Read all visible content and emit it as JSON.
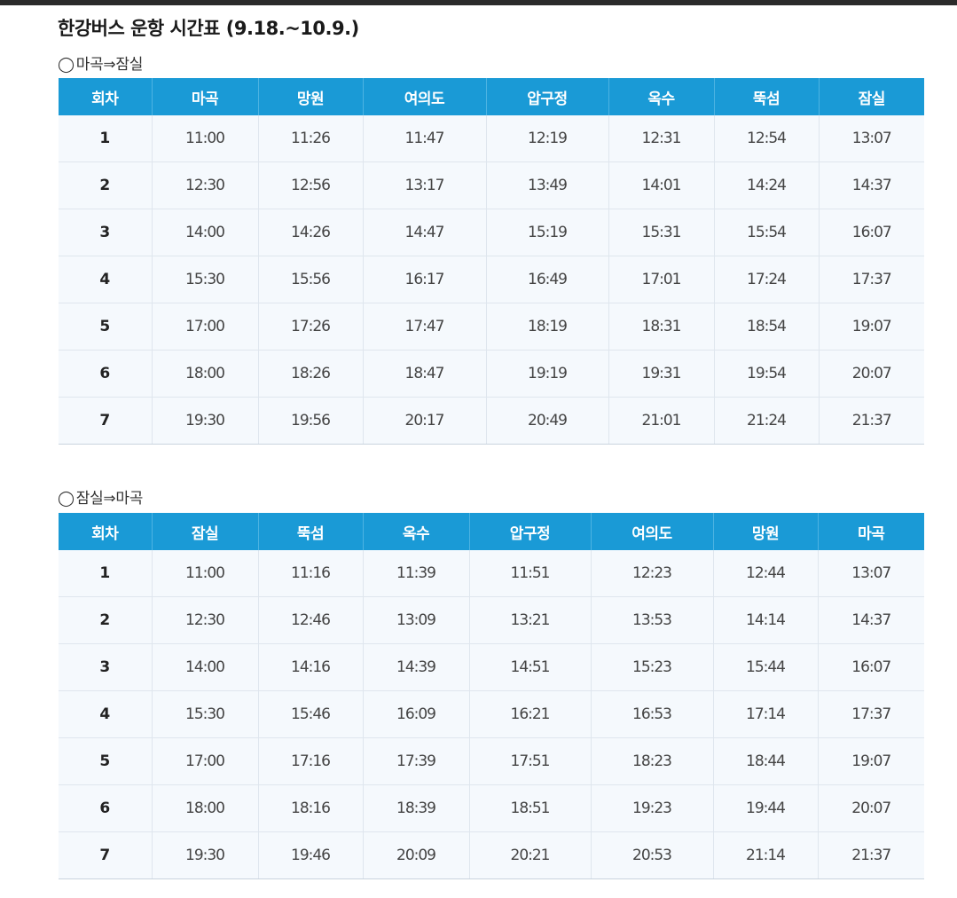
{
  "title": "한강버스 운항 시간표 (9.18.~10.9.)",
  "sections": [
    {
      "direction_mark": "◯",
      "direction": "마곡⇒잠실",
      "headers": [
        "회차",
        "마곡",
        "망원",
        "여의도",
        "압구정",
        "옥수",
        "뚝섬",
        "잠실"
      ],
      "rows": [
        [
          "1",
          "11:00",
          "11:26",
          "11:47",
          "12:19",
          "12:31",
          "12:54",
          "13:07"
        ],
        [
          "2",
          "12:30",
          "12:56",
          "13:17",
          "13:49",
          "14:01",
          "14:24",
          "14:37"
        ],
        [
          "3",
          "14:00",
          "14:26",
          "14:47",
          "15:19",
          "15:31",
          "15:54",
          "16:07"
        ],
        [
          "4",
          "15:30",
          "15:56",
          "16:17",
          "16:49",
          "17:01",
          "17:24",
          "17:37"
        ],
        [
          "5",
          "17:00",
          "17:26",
          "17:47",
          "18:19",
          "18:31",
          "18:54",
          "19:07"
        ],
        [
          "6",
          "18:00",
          "18:26",
          "18:47",
          "19:19",
          "19:31",
          "19:54",
          "20:07"
        ],
        [
          "7",
          "19:30",
          "19:56",
          "20:17",
          "20:49",
          "21:01",
          "21:24",
          "21:37"
        ]
      ]
    },
    {
      "direction_mark": "◯",
      "direction": "잠실⇒마곡",
      "headers": [
        "회차",
        "잠실",
        "뚝섬",
        "옥수",
        "압구정",
        "여의도",
        "망원",
        "마곡"
      ],
      "rows": [
        [
          "1",
          "11:00",
          "11:16",
          "11:39",
          "11:51",
          "12:23",
          "12:44",
          "13:07"
        ],
        [
          "2",
          "12:30",
          "12:46",
          "13:09",
          "13:21",
          "13:53",
          "14:14",
          "14:37"
        ],
        [
          "3",
          "14:00",
          "14:16",
          "14:39",
          "14:51",
          "15:23",
          "15:44",
          "16:07"
        ],
        [
          "4",
          "15:30",
          "15:46",
          "16:09",
          "16:21",
          "16:53",
          "17:14",
          "17:37"
        ],
        [
          "5",
          "17:00",
          "17:16",
          "17:39",
          "17:51",
          "18:23",
          "18:44",
          "19:07"
        ],
        [
          "6",
          "18:00",
          "18:16",
          "18:39",
          "18:51",
          "19:23",
          "19:44",
          "20:07"
        ],
        [
          "7",
          "19:30",
          "19:46",
          "20:09",
          "20:21",
          "20:53",
          "21:14",
          "21:37"
        ]
      ]
    }
  ]
}
